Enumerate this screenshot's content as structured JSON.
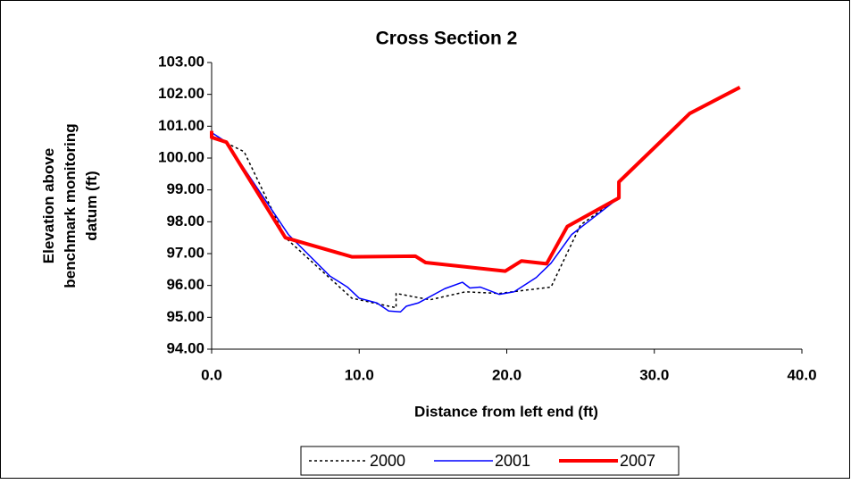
{
  "chart_data": {
    "type": "line",
    "title": "Cross Section 2",
    "x_label": "Distance from left end (ft)",
    "y_label": "Elevation above benchmark monitoring datum (ft)",
    "xlim": [
      0,
      40
    ],
    "xticks": [
      {
        "value": 0,
        "label": "0.0"
      },
      {
        "value": 10,
        "label": "10.0"
      },
      {
        "value": 20,
        "label": "20.0"
      },
      {
        "value": 30,
        "label": "30.0"
      },
      {
        "value": 40,
        "label": "40.0"
      }
    ],
    "ylim": [
      94,
      103
    ],
    "yticks": [
      {
        "value": 94,
        "label": "94.00"
      },
      {
        "value": 95,
        "label": "95.00"
      },
      {
        "value": 96,
        "label": "96.00"
      },
      {
        "value": 97,
        "label": "97.00"
      },
      {
        "value": 98,
        "label": "98.00"
      },
      {
        "value": 99,
        "label": "99.00"
      },
      {
        "value": 100,
        "label": "100.00"
      },
      {
        "value": 101,
        "label": "101.00"
      },
      {
        "value": 102,
        "label": "102.00"
      },
      {
        "value": 103,
        "label": "103.00"
      }
    ],
    "legend": "bottom",
    "series": [
      {
        "name": "2000",
        "color": "#000000",
        "style": "dotted",
        "width": 1.5,
        "x": [
          0,
          2.2,
          5,
          9.5,
          12.5,
          12.5,
          14.8,
          17.2,
          19.5,
          23.0,
          25.0,
          27.6
        ],
        "values": [
          100.7,
          100.2,
          97.5,
          95.6,
          95.3,
          95.75,
          95.55,
          95.8,
          95.75,
          95.95,
          97.9,
          98.75
        ]
      },
      {
        "name": "2001",
        "color": "#0000ff",
        "style": "solid",
        "width": 1.5,
        "x": [
          0,
          1,
          5.2,
          8,
          9.2,
          10,
          11.2,
          12,
          12.8,
          13.2,
          14,
          15.8,
          17,
          17.5,
          18.2,
          19.5,
          20.5,
          22,
          23,
          24.4,
          27.6
        ],
        "values": [
          100.8,
          100.5,
          97.6,
          96.3,
          95.95,
          95.6,
          95.45,
          95.2,
          95.17,
          95.35,
          95.45,
          95.9,
          96.1,
          95.92,
          95.95,
          95.72,
          95.8,
          96.25,
          96.7,
          97.6,
          98.75
        ]
      },
      {
        "name": "2007",
        "color": "#ff0000",
        "style": "solid",
        "width": 4,
        "x": [
          0,
          0,
          1,
          5,
          9.5,
          13.8,
          14.5,
          19.9,
          21.0,
          22.7,
          24.1,
          27.6,
          27.6,
          32.4,
          35.8
        ],
        "values": [
          100.85,
          100.65,
          100.5,
          97.5,
          96.9,
          96.92,
          96.72,
          96.45,
          96.77,
          96.68,
          97.85,
          98.75,
          99.25,
          101.4,
          102.22
        ]
      }
    ]
  }
}
